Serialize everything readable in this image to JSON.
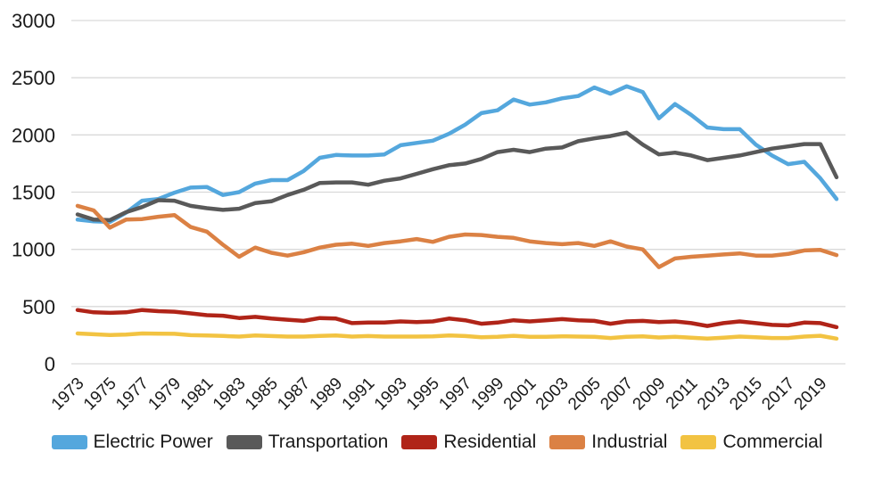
{
  "chart_data": {
    "type": "line",
    "title": "",
    "xlabel": "",
    "ylabel": "",
    "ylim": [
      0,
      3000
    ],
    "grid": "horizontal",
    "gridline_color": "#d9d9d9",
    "background_color": "#ffffff",
    "legend_position": "bottom",
    "yticks": [
      0,
      500,
      1000,
      1500,
      2000,
      2500,
      3000
    ],
    "xticks": [
      1973,
      1975,
      1977,
      1979,
      1981,
      1983,
      1985,
      1987,
      1989,
      1991,
      1993,
      1995,
      1997,
      1999,
      2001,
      2003,
      2005,
      2007,
      2009,
      2011,
      2013,
      2015,
      2017,
      2019
    ],
    "x": [
      1973,
      1974,
      1975,
      1976,
      1977,
      1978,
      1979,
      1980,
      1981,
      1982,
      1983,
      1984,
      1985,
      1986,
      1987,
      1988,
      1989,
      1990,
      1991,
      1992,
      1993,
      1994,
      1995,
      1996,
      1997,
      1998,
      1999,
      2000,
      2001,
      2002,
      2003,
      2004,
      2005,
      2006,
      2007,
      2008,
      2009,
      2010,
      2011,
      2012,
      2013,
      2014,
      2015,
      2016,
      2017,
      2018,
      2019,
      2020
    ],
    "series": [
      {
        "name": "Electric Power",
        "color": "#54a7dd",
        "values": [
          1260,
          1245,
          1240,
          1320,
          1425,
          1440,
          1495,
          1540,
          1545,
          1475,
          1500,
          1575,
          1605,
          1605,
          1685,
          1800,
          1825,
          1820,
          1820,
          1830,
          1910,
          1930,
          1950,
          2010,
          2090,
          2190,
          2215,
          2310,
          2265,
          2285,
          2320,
          2340,
          2415,
          2360,
          2425,
          2375,
          2145,
          2270,
          2175,
          2065,
          2050,
          2050,
          1915,
          1820,
          1745,
          1765,
          1620,
          1440
        ]
      },
      {
        "name": "Transportation",
        "color": "#595959",
        "values": [
          1305,
          1260,
          1255,
          1325,
          1370,
          1430,
          1425,
          1380,
          1360,
          1345,
          1355,
          1405,
          1420,
          1475,
          1520,
          1580,
          1585,
          1585,
          1565,
          1600,
          1620,
          1660,
          1700,
          1735,
          1750,
          1790,
          1850,
          1870,
          1850,
          1880,
          1890,
          1945,
          1970,
          1990,
          2020,
          1915,
          1830,
          1845,
          1820,
          1780,
          1800,
          1820,
          1850,
          1880,
          1900,
          1920,
          1920,
          1630
        ]
      },
      {
        "name": "Residential",
        "color": "#b02418",
        "values": [
          470,
          450,
          445,
          450,
          470,
          460,
          455,
          440,
          425,
          420,
          400,
          410,
          395,
          385,
          375,
          400,
          395,
          355,
          360,
          360,
          370,
          365,
          370,
          395,
          380,
          350,
          360,
          380,
          370,
          380,
          390,
          380,
          375,
          350,
          370,
          375,
          365,
          370,
          355,
          330,
          355,
          370,
          355,
          340,
          335,
          360,
          355,
          320
        ]
      },
      {
        "name": "Industrial",
        "color": "#db8144",
        "values": [
          1380,
          1340,
          1190,
          1260,
          1265,
          1285,
          1300,
          1195,
          1155,
          1040,
          935,
          1015,
          970,
          945,
          975,
          1015,
          1040,
          1050,
          1030,
          1055,
          1070,
          1090,
          1065,
          1110,
          1130,
          1125,
          1110,
          1100,
          1070,
          1055,
          1045,
          1055,
          1030,
          1070,
          1025,
          1000,
          845,
          920,
          935,
          945,
          955,
          965,
          945,
          945,
          960,
          990,
          995,
          950
        ]
      },
      {
        "name": "Commercial",
        "color": "#f2c342",
        "values": [
          265,
          258,
          252,
          255,
          265,
          263,
          262,
          250,
          248,
          243,
          238,
          248,
          242,
          238,
          238,
          243,
          248,
          238,
          242,
          238,
          238,
          238,
          240,
          248,
          242,
          232,
          235,
          245,
          235,
          235,
          240,
          238,
          235,
          225,
          235,
          240,
          230,
          235,
          228,
          220,
          228,
          238,
          232,
          225,
          225,
          238,
          245,
          220
        ]
      }
    ]
  }
}
